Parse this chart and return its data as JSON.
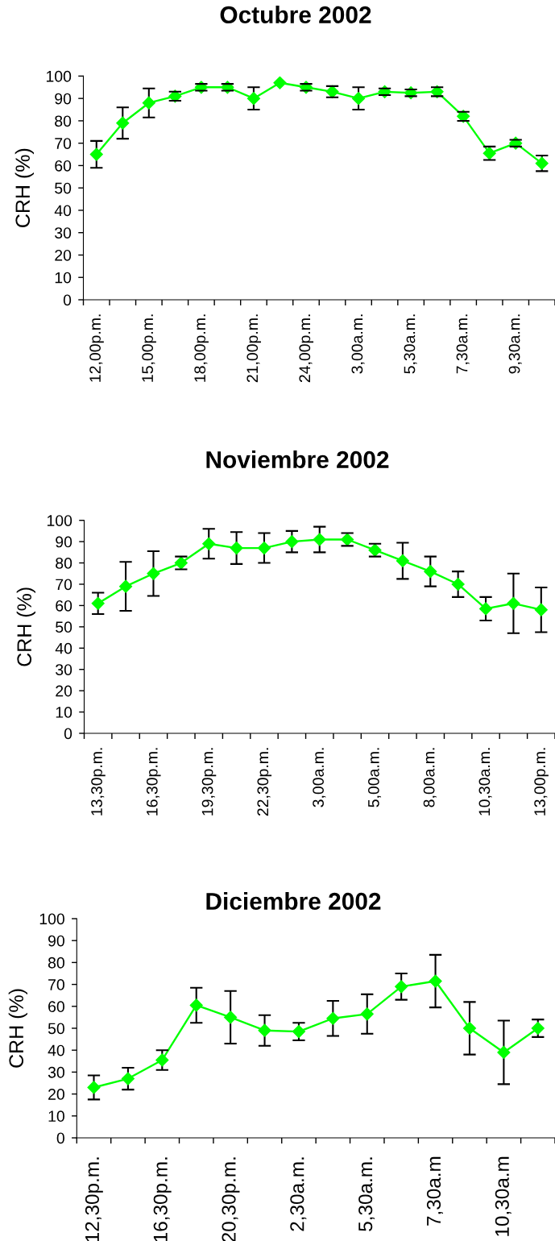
{
  "chart_data": [
    {
      "type": "line",
      "title": "Octubre 2002",
      "ylabel": "CRH (%)",
      "categories": [
        "12,00p.m.",
        null,
        "15,00p.m.",
        null,
        "18,00p.m.",
        null,
        "21,00p.m.",
        null,
        "24,00p.m.",
        null,
        "3,00a.m.",
        null,
        "5,30a.m.",
        null,
        "7,30a.m.",
        null,
        "9,30a.m.",
        null
      ],
      "values": [
        65,
        79,
        88,
        91,
        95,
        95,
        90,
        97,
        95,
        93,
        90,
        93,
        92.5,
        93,
        82,
        65.5,
        70,
        61
      ],
      "errors": [
        6,
        7,
        6.5,
        2,
        1.5,
        1.5,
        5,
        null,
        1.5,
        2.5,
        5,
        1.5,
        1.5,
        2,
        2,
        3,
        1.5,
        3.5
      ],
      "color": "#00ff00",
      "marker": "diamond",
      "line_style": "solid",
      "ylim": [
        0,
        100
      ],
      "yticks": [
        0,
        10,
        20,
        30,
        40,
        50,
        60,
        70,
        80,
        90,
        100
      ]
    },
    {
      "type": "line",
      "title": "Noviembre 2002",
      "ylabel": "CRH (%)",
      "categories": [
        "13,30p.m.",
        null,
        "16,30p.m.",
        null,
        "19,30p.m.",
        null,
        "22,30p.m.",
        null,
        "3,00a.m.",
        null,
        "5,00a.m.",
        null,
        "8,00a.m.",
        null,
        "10,30a.m.",
        null,
        "13,00p.m."
      ],
      "values": [
        61,
        69,
        75,
        80,
        89,
        87,
        87,
        90,
        91,
        91,
        86,
        81,
        76,
        70,
        58.5,
        61,
        58
      ],
      "errors": [
        5,
        11.5,
        10.5,
        3,
        7,
        7.5,
        7,
        5,
        6,
        3,
        3,
        8.5,
        7,
        6,
        5.5,
        14,
        10.5
      ],
      "color": "#00ff00",
      "marker": "diamond",
      "line_style": "solid",
      "ylim": [
        0,
        100
      ],
      "yticks": [
        0,
        10,
        20,
        30,
        40,
        50,
        60,
        70,
        80,
        90,
        100
      ]
    },
    {
      "type": "line",
      "title": "Diciembre 2002",
      "ylabel": "CRH (%)",
      "categories": [
        "12,30p.m.",
        null,
        "16,30p.m.",
        null,
        "20,30p.m.",
        null,
        "2,30a.m.",
        null,
        "5,30a.m.",
        null,
        "7,30a.m",
        null,
        "10,30a.m",
        null
      ],
      "values": [
        23,
        27,
        35.5,
        60.5,
        55,
        49,
        48.5,
        54.5,
        56.5,
        69,
        71.5,
        50,
        39,
        50
      ],
      "errors": [
        5.5,
        5,
        4.5,
        8,
        12,
        7,
        4,
        8,
        9,
        6,
        12,
        12,
        14.5,
        4
      ],
      "color": "#00ff00",
      "marker": "diamond",
      "line_style": "solid",
      "ylim": [
        0,
        100
      ],
      "yticks": [
        0,
        10,
        20,
        30,
        40,
        50,
        60,
        70,
        80,
        90,
        100
      ]
    }
  ]
}
